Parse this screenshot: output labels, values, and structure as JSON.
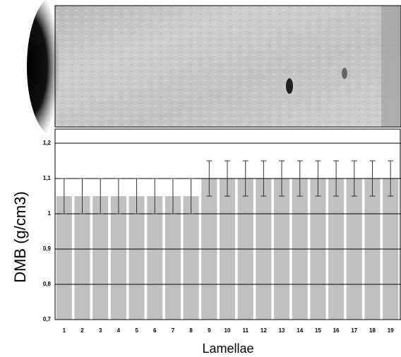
{
  "chart_data": {
    "type": "bar",
    "y_label": "DMB (g/cm3)",
    "x_label": "Lamellae",
    "categories": [
      "1",
      "2",
      "3",
      "4",
      "5",
      "6",
      "7",
      "8",
      "9",
      "10",
      "11",
      "12",
      "13",
      "14",
      "15",
      "16",
      "17",
      "18",
      "19"
    ],
    "values": [
      1.05,
      1.05,
      1.05,
      1.05,
      1.05,
      1.05,
      1.05,
      1.05,
      1.1,
      1.1,
      1.1,
      1.1,
      1.1,
      1.1,
      1.1,
      1.1,
      1.1,
      1.1,
      1.1
    ],
    "errors": [
      0.05,
      0.05,
      0.05,
      0.05,
      0.05,
      0.05,
      0.05,
      0.05,
      0.05,
      0.05,
      0.05,
      0.05,
      0.05,
      0.05,
      0.05,
      0.05,
      0.05,
      0.05,
      0.05
    ],
    "color": "#c0c0c0",
    "ylim": [
      0.7,
      1.24
    ],
    "yticks": [
      {
        "value": 0.7,
        "label": "0,7"
      },
      {
        "value": 0.8,
        "label": "0,8"
      },
      {
        "value": 0.9,
        "label": "0,9"
      },
      {
        "value": 1,
        "label": "1"
      },
      {
        "value": 1.1,
        "label": "1,1"
      },
      {
        "value": 1.2,
        "label": "1,2"
      }
    ],
    "grid": true
  }
}
